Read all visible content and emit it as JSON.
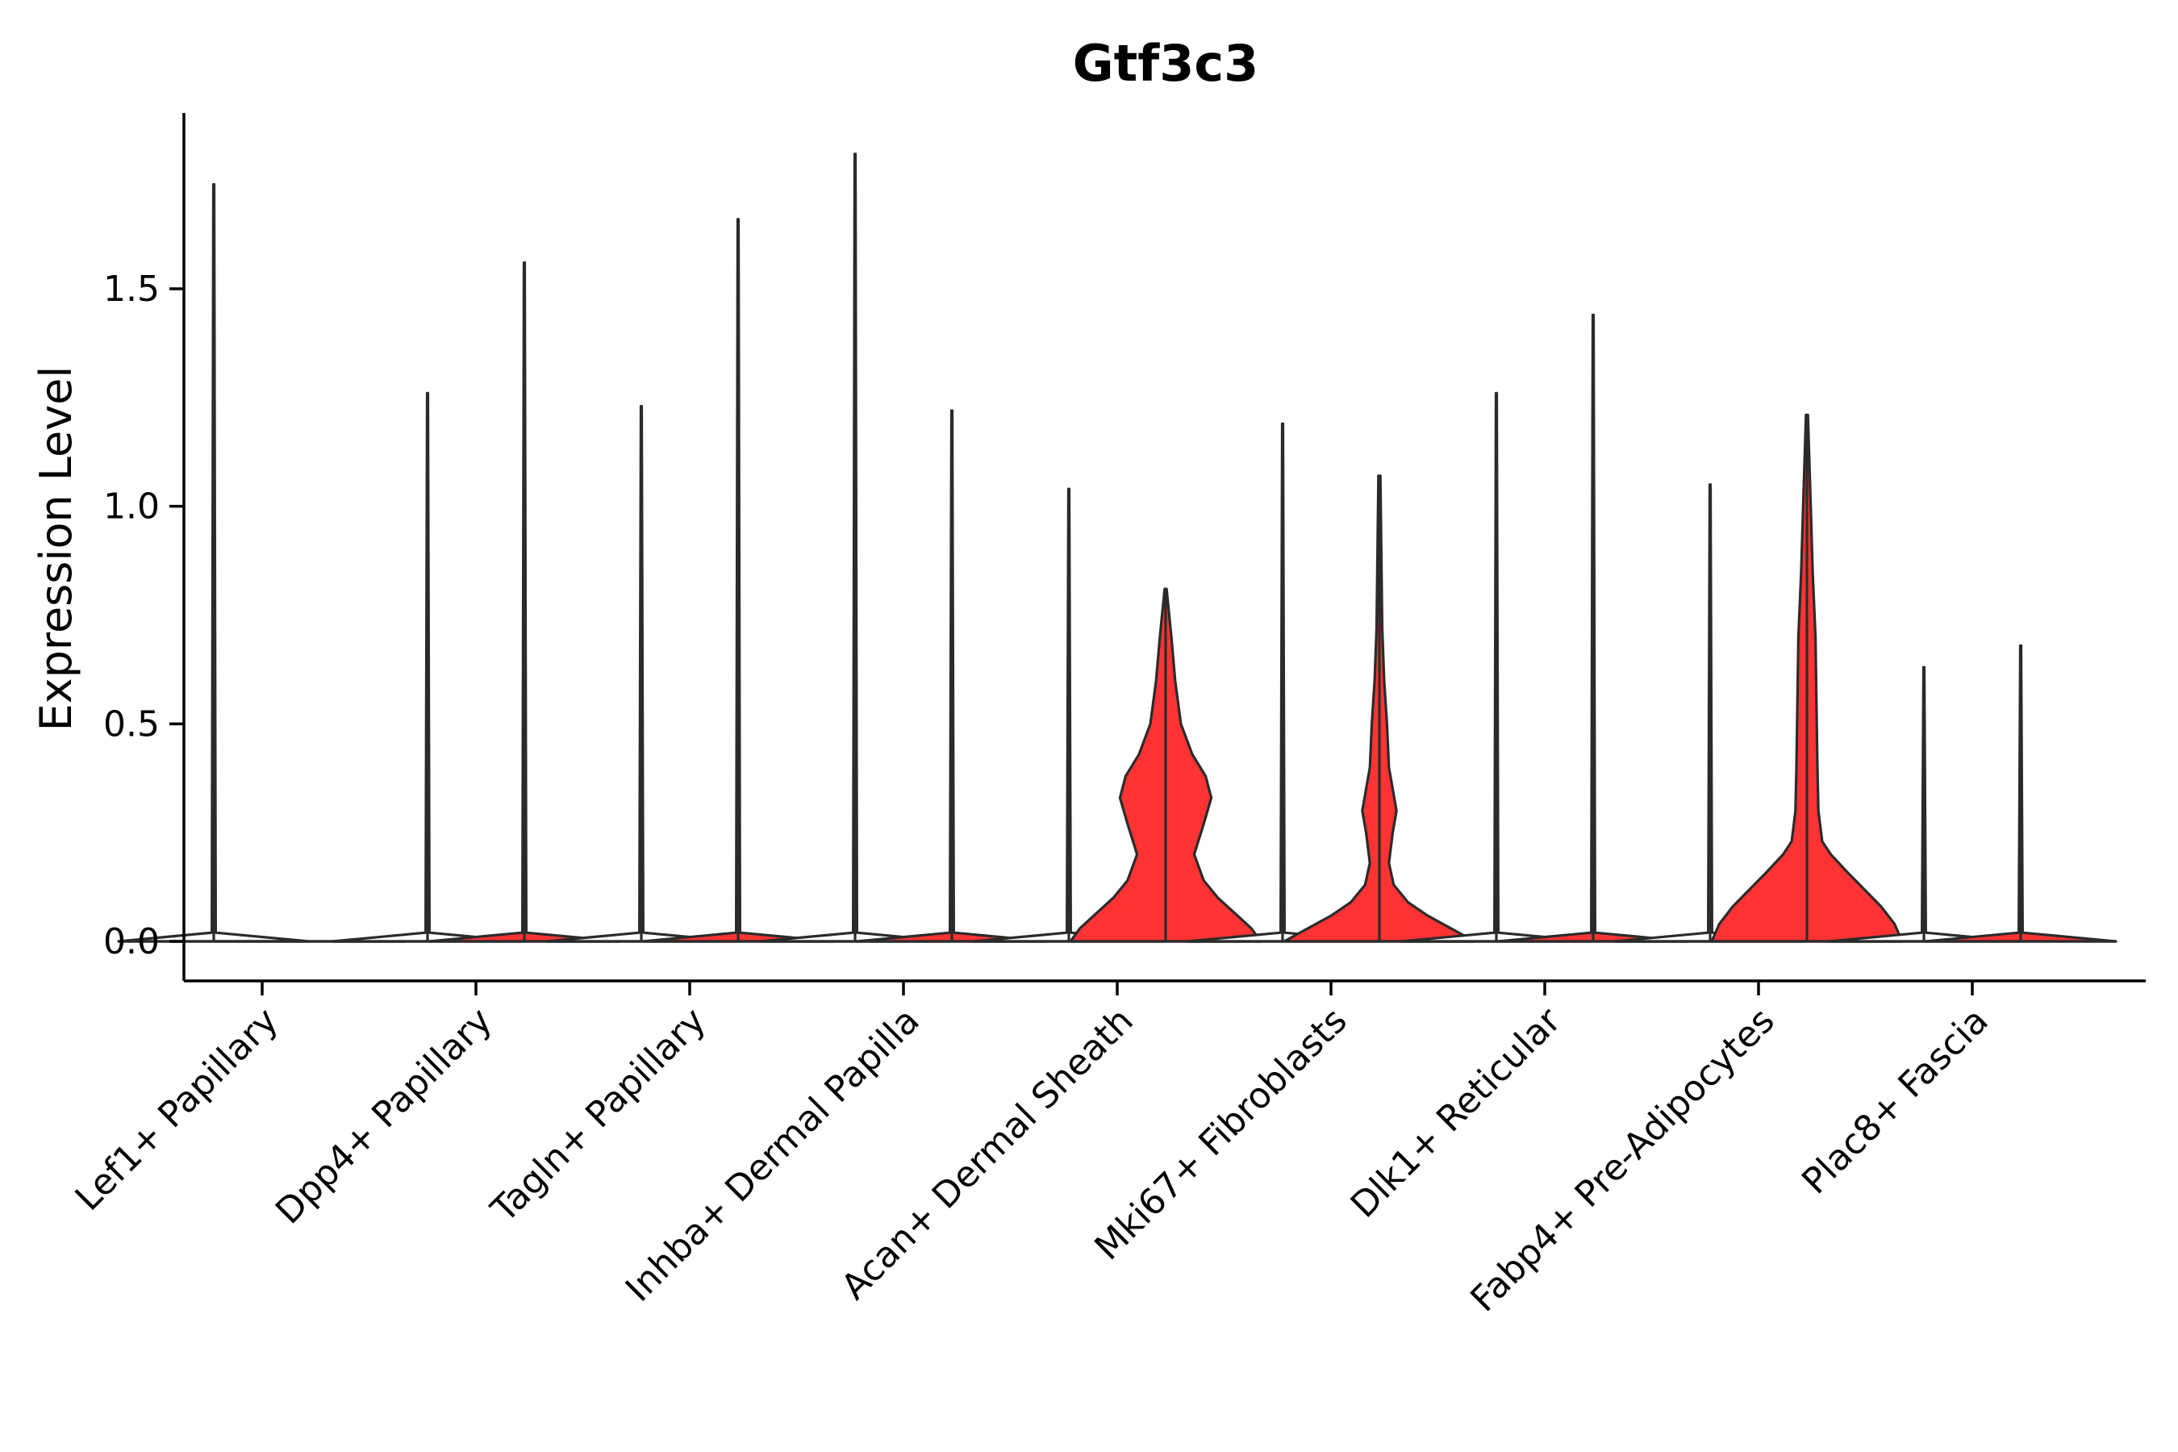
{
  "chart_data": {
    "type": "violin",
    "title": "Gtf3c3",
    "xlabel": "",
    "ylabel": "Expression Level",
    "ylim": [
      -0.09,
      1.9
    ],
    "yticks": [
      0.0,
      0.5,
      1.0,
      1.5
    ],
    "ytick_labels": [
      "0.0",
      "0.5",
      "1.0",
      "1.5"
    ],
    "grid": false,
    "legend": "none",
    "categories": [
      "Lef1+ Papillary",
      "Dpp4+ Papillary",
      "Tagln+ Papillary",
      "Inhba+ Dermal Papilla",
      "Acan+ Dermal Sheath",
      "Mki67+ Fibroblasts",
      "Dlk1+ Reticular",
      "Fabp4+ Pre-Adipocytes",
      "Plac8+ Fascia"
    ],
    "groups": [
      "A",
      "B"
    ],
    "colors": {
      "A": "#ffffff",
      "B": "#ff3333"
    },
    "series": [
      {
        "group": "A",
        "max": [
          1.74,
          1.26,
          1.23,
          1.81,
          1.04,
          1.19,
          1.26,
          1.05,
          0.63
        ],
        "profile_y": [
          [
            0,
            0.02
          ],
          [
            0,
            0.02
          ],
          [
            0,
            0.02
          ],
          [
            0,
            0.02
          ],
          [
            0,
            0.02
          ],
          [
            0,
            0.02
          ],
          [
            0,
            0.02
          ],
          [
            0,
            0.02
          ],
          [
            0,
            0.02
          ]
        ],
        "profile_w": [
          [
            1,
            0.02
          ],
          [
            1,
            0.02
          ],
          [
            1,
            0.02
          ],
          [
            1,
            0.02
          ],
          [
            1,
            0.02
          ],
          [
            1,
            0.02
          ],
          [
            1,
            0.02
          ],
          [
            1,
            0.02
          ],
          [
            1,
            0.02
          ]
        ]
      },
      {
        "group": "B",
        "max": [
          0.0,
          1.56,
          1.66,
          1.22,
          0.81,
          1.07,
          1.44,
          1.21,
          0.68
        ],
        "profile_y": [
          [
            0,
            0.02
          ],
          [
            0,
            0.02
          ],
          [
            0,
            0.02
          ],
          [
            0,
            0.02
          ],
          [
            0,
            0.03,
            0.06,
            0.1,
            0.14,
            0.2,
            0.27,
            0.33,
            0.38,
            0.43,
            0.5,
            0.6,
            0.7,
            0.81
          ],
          [
            0,
            0.03,
            0.06,
            0.09,
            0.13,
            0.18,
            0.25,
            0.3,
            0.35,
            0.4,
            0.5,
            0.6,
            0.72,
            1.07
          ],
          [
            0,
            0.02
          ],
          [
            0,
            0.04,
            0.08,
            0.12,
            0.16,
            0.2,
            0.23,
            0.3,
            0.4,
            0.55,
            0.7,
            0.85,
            1.0,
            1.21
          ],
          [
            0,
            0.02
          ]
        ],
        "profile_w": [
          [
            1,
            0.02
          ],
          [
            1,
            0.02
          ],
          [
            1,
            0.02
          ],
          [
            1,
            0.02
          ],
          [
            1,
            0.9,
            0.75,
            0.55,
            0.4,
            0.3,
            0.4,
            0.48,
            0.42,
            0.28,
            0.16,
            0.1,
            0.06,
            0.01
          ],
          [
            1,
            0.75,
            0.5,
            0.3,
            0.15,
            0.1,
            0.14,
            0.18,
            0.14,
            0.1,
            0.08,
            0.05,
            0.03,
            0.01
          ],
          [
            1,
            0.02
          ],
          [
            1,
            0.92,
            0.78,
            0.6,
            0.42,
            0.25,
            0.16,
            0.12,
            0.11,
            0.1,
            0.09,
            0.06,
            0.04,
            0.01
          ],
          [
            1,
            0.02
          ]
        ]
      }
    ]
  }
}
